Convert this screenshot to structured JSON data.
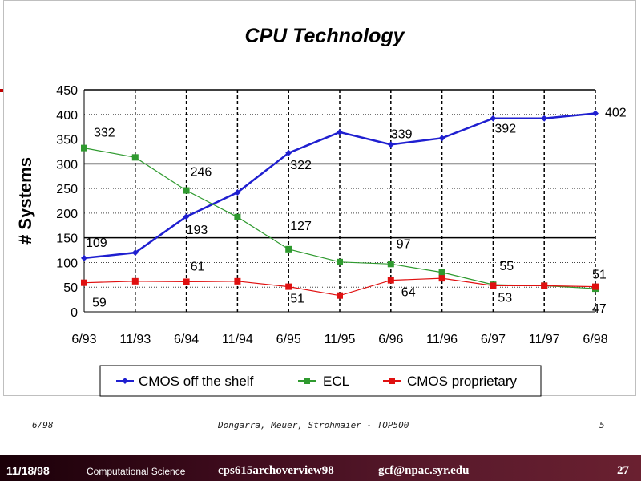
{
  "chart_data": {
    "type": "line",
    "title": "CPU Technology",
    "xlabel": "",
    "ylabel": "# Systems",
    "categories": [
      "6/93",
      "11/93",
      "6/94",
      "11/94",
      "6/95",
      "11/95",
      "6/96",
      "11/96",
      "6/97",
      "11/97",
      "6/98"
    ],
    "ylim": [
      0,
      450
    ],
    "yticks": [
      "0",
      "50",
      "100",
      "150",
      "200",
      "250",
      "300",
      "350",
      "400",
      "450"
    ],
    "grid": "horizontal solid at 150, 300, 450; dotted elsewhere; vertical dashed",
    "legend_position": "bottom",
    "series": [
      {
        "name": "CMOS off the shelf",
        "color": "#1f1fd0",
        "marker": "diamond",
        "values": [
          109,
          120,
          193,
          242,
          322,
          364,
          339,
          352,
          392,
          392,
          402
        ],
        "labels": [
          "109",
          "",
          "193",
          "",
          "322",
          "",
          "339",
          "",
          "392",
          "",
          "402"
        ]
      },
      {
        "name": "ECL",
        "color": "#2f9a2f",
        "marker": "square",
        "values": [
          332,
          313,
          246,
          192,
          127,
          101,
          97,
          80,
          55,
          53,
          47
        ],
        "labels": [
          "332",
          "",
          "246",
          "",
          "127",
          "",
          "97",
          "",
          "55",
          "",
          "47"
        ]
      },
      {
        "name": "CMOS proprietary",
        "color": "#e01010",
        "marker": "square",
        "values": [
          59,
          62,
          61,
          62,
          51,
          33,
          64,
          68,
          53,
          53,
          51
        ],
        "labels": [
          "59",
          "",
          "61",
          "",
          "51",
          "",
          "64",
          "",
          "53",
          "",
          "51"
        ]
      }
    ]
  },
  "slide_footer": {
    "left": "6/98",
    "center": "Dongarra, Meuer, Strohmaier - TOP500",
    "right": "5"
  },
  "bottom_bar": {
    "date": "11/18/98",
    "course": "Computational Science",
    "file": "cps615archoverview98",
    "email": "gcf@npac.syr.edu",
    "page": "27"
  }
}
